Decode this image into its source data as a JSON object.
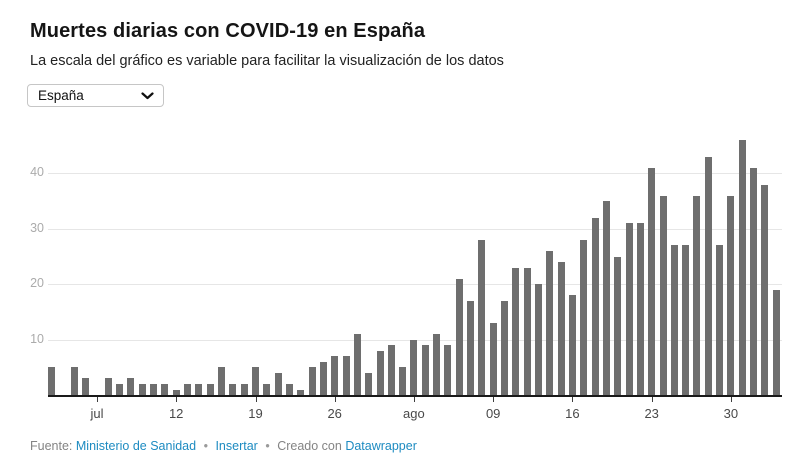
{
  "header": {
    "title": "Muertes diarias con COVID-19 en España",
    "subtitle": "La escala del gráfico es variable para facilitar la visualización de los datos"
  },
  "controls": {
    "country_select": {
      "value": "España",
      "icon": "chevron-down"
    }
  },
  "chart_data": {
    "type": "bar",
    "title": "Muertes diarias con COVID-19 en España",
    "description": "Daily bars from 1 jul to 3 sep; days with no bar have value 0",
    "values": [
      5,
      0,
      5,
      3,
      0,
      3,
      2,
      3,
      2,
      2,
      2,
      1,
      2,
      2,
      2,
      5,
      2,
      2,
      5,
      2,
      4,
      2,
      1,
      5,
      6,
      7,
      7,
      11,
      4,
      8,
      9,
      5,
      10,
      9,
      11,
      9,
      21,
      17,
      28,
      13,
      17,
      23,
      23,
      20,
      26,
      24,
      18,
      28,
      32,
      35,
      25,
      31,
      31,
      41,
      36,
      27,
      27,
      36,
      43,
      27,
      36,
      46,
      41,
      38,
      19
    ],
    "x_ticks": [
      {
        "index": 4,
        "label": "jul"
      },
      {
        "index": 11,
        "label": "12"
      },
      {
        "index": 18,
        "label": "19"
      },
      {
        "index": 25,
        "label": "26"
      },
      {
        "index": 32,
        "label": "ago"
      },
      {
        "index": 39,
        "label": "09"
      },
      {
        "index": 46,
        "label": "16"
      },
      {
        "index": 53,
        "label": "23"
      },
      {
        "index": 60,
        "label": "30"
      }
    ],
    "y_ticks": [
      10,
      20,
      30,
      40
    ],
    "ylim": [
      0,
      48
    ],
    "grid": "horizontal",
    "legend": "none",
    "bar_color": "#6e6e6e",
    "grid_color": "#e6e6e6",
    "axis_color": "#1a1a1a"
  },
  "footer": {
    "prefix": "Fuente:",
    "source_link": "Ministerio de Sanidad",
    "separator": "•",
    "embed_link": "Insertar",
    "created_with": "Creado con",
    "creator_link": "Datawrapper",
    "link_color": "#1d8bc1"
  }
}
